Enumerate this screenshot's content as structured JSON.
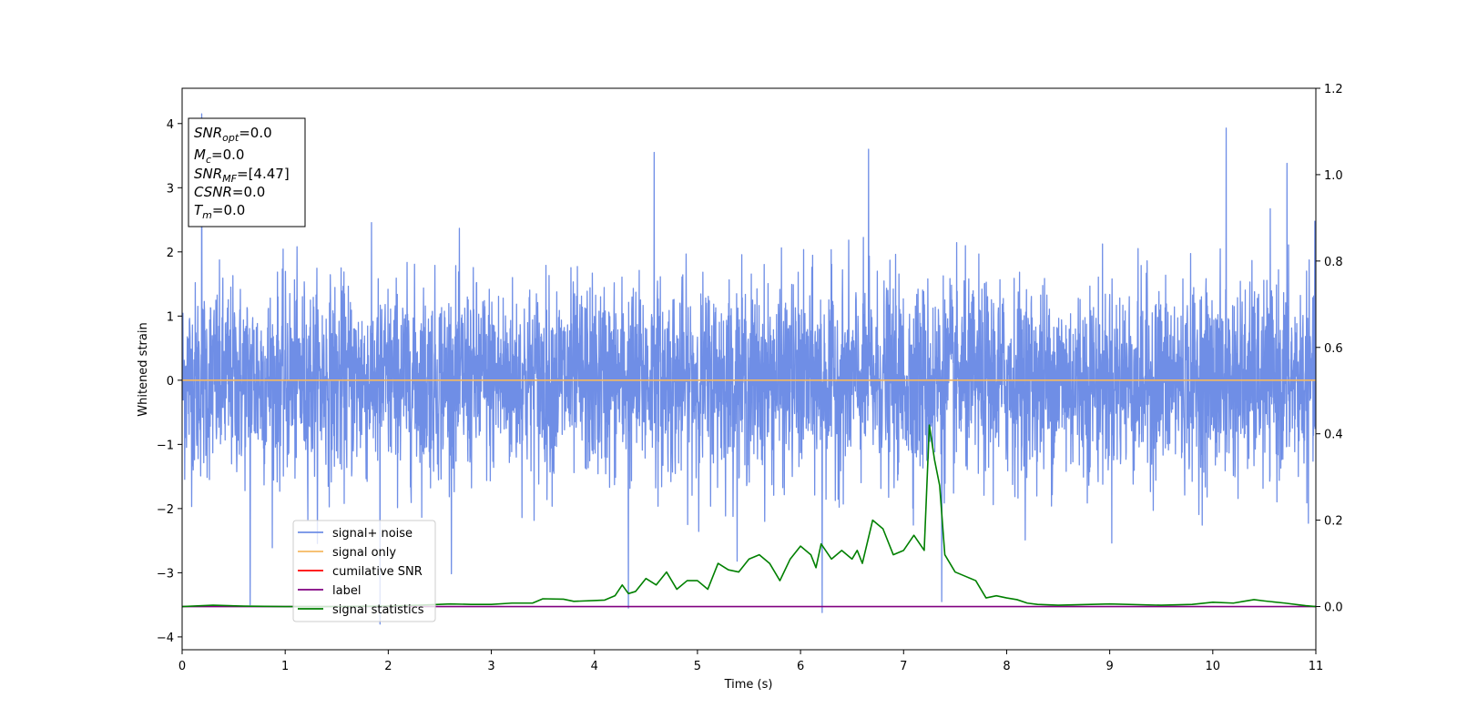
{
  "chart_data": {
    "type": "line",
    "xlabel": "Time (s)",
    "ylabel": "Whitened strain",
    "xlim": [
      0,
      11
    ],
    "ylim": [
      -4.2,
      4.55
    ],
    "y2lim": [
      -0.1,
      1.2
    ],
    "x_ticks": [
      0,
      1,
      2,
      3,
      4,
      5,
      6,
      7,
      8,
      9,
      10,
      11
    ],
    "y_ticks": [
      -4,
      -3,
      -2,
      -1,
      0,
      1,
      2,
      3,
      4
    ],
    "y2_ticks": [
      0.0,
      0.2,
      0.4,
      0.6,
      0.8,
      1.0,
      1.2
    ],
    "grid": false,
    "legend_position": "lower-left",
    "series": [
      {
        "name": "signal+ noise",
        "color": "#6f8ee6",
        "axis": "left",
        "kind": "noise",
        "approx_std": 0.75,
        "approx_range": [
          -3.8,
          4.2
        ],
        "sample_rate_hz": 400,
        "notable_peaks": [
          {
            "x": 0.19,
            "y": 4.15
          },
          {
            "x": 0.66,
            "y": -3.5
          },
          {
            "x": 1.92,
            "y": -3.8
          },
          {
            "x": 4.33,
            "y": -3.55
          },
          {
            "x": 4.58,
            "y": 3.55
          },
          {
            "x": 6.21,
            "y": -3.62
          },
          {
            "x": 6.66,
            "y": 3.6
          },
          {
            "x": 7.37,
            "y": -3.45
          },
          {
            "x": 10.13,
            "y": 3.93
          },
          {
            "x": 10.72,
            "y": 3.38
          }
        ]
      },
      {
        "name": "signal only",
        "color": "#f4b860",
        "axis": "left",
        "x": [
          0,
          11
        ],
        "y": [
          0,
          0
        ]
      },
      {
        "name": "cumilative SNR",
        "color": "#ff0000",
        "axis": "right",
        "x": [],
        "y": []
      },
      {
        "name": "label",
        "color": "#800080",
        "axis": "right",
        "x": [
          0,
          11
        ],
        "y": [
          0,
          0
        ]
      },
      {
        "name": "signal statistics",
        "color": "#008000",
        "axis": "right",
        "x": [
          0,
          0.3,
          0.6,
          1.0,
          1.5,
          2.0,
          2.3,
          2.6,
          2.8,
          3.0,
          3.2,
          3.4,
          3.5,
          3.7,
          3.8,
          4.0,
          4.1,
          4.2,
          4.27,
          4.33,
          4.4,
          4.5,
          4.6,
          4.7,
          4.8,
          4.9,
          5.0,
          5.1,
          5.2,
          5.3,
          5.4,
          5.5,
          5.6,
          5.7,
          5.8,
          5.9,
          6.0,
          6.1,
          6.15,
          6.2,
          6.3,
          6.4,
          6.5,
          6.55,
          6.6,
          6.7,
          6.8,
          6.9,
          7.0,
          7.1,
          7.2,
          7.25,
          7.3,
          7.35,
          7.4,
          7.5,
          7.6,
          7.7,
          7.8,
          7.9,
          8.0,
          8.1,
          8.2,
          8.3,
          8.5,
          9.0,
          9.5,
          9.8,
          10.0,
          10.2,
          10.3,
          10.4,
          10.5,
          10.7,
          10.9,
          11.0
        ],
        "y": [
          0.0,
          0.003,
          0.001,
          0.0,
          0.0,
          0.001,
          0.003,
          0.006,
          0.005,
          0.005,
          0.008,
          0.008,
          0.018,
          0.017,
          0.012,
          0.014,
          0.015,
          0.025,
          0.05,
          0.03,
          0.035,
          0.065,
          0.05,
          0.08,
          0.04,
          0.06,
          0.06,
          0.04,
          0.1,
          0.085,
          0.08,
          0.11,
          0.12,
          0.1,
          0.06,
          0.11,
          0.14,
          0.12,
          0.09,
          0.145,
          0.11,
          0.13,
          0.11,
          0.13,
          0.1,
          0.2,
          0.18,
          0.12,
          0.13,
          0.165,
          0.13,
          0.42,
          0.34,
          0.28,
          0.12,
          0.08,
          0.07,
          0.06,
          0.02,
          0.025,
          0.02,
          0.016,
          0.008,
          0.005,
          0.003,
          0.006,
          0.003,
          0.005,
          0.01,
          0.008,
          0.012,
          0.016,
          0.013,
          0.008,
          0.002,
          0.0
        ]
      }
    ],
    "annotation": [
      {
        "symbol": "SNR",
        "sub": "opt",
        "value": "=0.0"
      },
      {
        "symbol": "M",
        "sub": "c",
        "value": "=0.0"
      },
      {
        "symbol": "SNR",
        "sub": "MF",
        "value": "=[4.47]"
      },
      {
        "symbol": "CSNR",
        "sub": "",
        "value": "=0.0"
      },
      {
        "symbol": "T",
        "sub": "m",
        "value": "=0.0"
      }
    ]
  }
}
